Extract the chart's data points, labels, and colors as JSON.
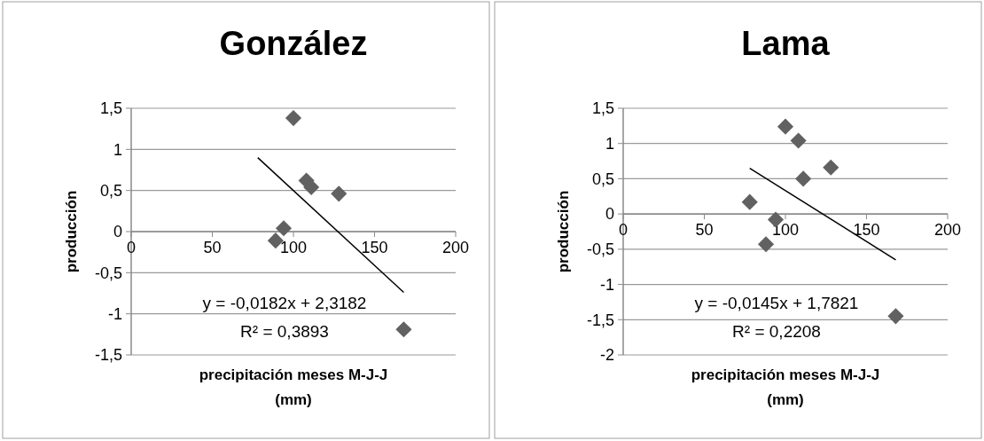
{
  "chart_data": [
    {
      "type": "scatter",
      "title": "González",
      "xlabel": "precipitación meses M-J-J (mm)",
      "ylabel": "producción",
      "xlim": [
        0,
        200
      ],
      "xticks": [
        0,
        50,
        100,
        150,
        200
      ],
      "ylim": [
        -1.5,
        1.5
      ],
      "yticks": [
        {
          "value": -1.5,
          "label": "-1,5"
        },
        {
          "value": -1,
          "label": "-1"
        },
        {
          "value": -0.5,
          "label": "-0,5"
        },
        0,
        {
          "value": 0.5,
          "label": "0,5"
        },
        1,
        {
          "value": 1.5,
          "label": "1,5"
        }
      ],
      "grid": "y",
      "annotations": [
        "y = -0,0182x + 2,3182",
        "R² = 0,3893"
      ],
      "series": [
        {
          "marker": "diamond",
          "color": "#616161",
          "x": [
            100,
            108,
            111,
            128,
            94,
            89,
            168
          ],
          "values": [
            1.38,
            0.62,
            0.54,
            0.46,
            0.04,
            -0.11,
            -1.19
          ]
        },
        {
          "type": "line",
          "color": "#000000",
          "x": [
            78,
            168
          ],
          "values": [
            0.9,
            -0.74
          ]
        }
      ]
    },
    {
      "type": "scatter",
      "title": "Lama",
      "xlabel": "precipitación meses M-J-J (mm)",
      "ylabel": "producción",
      "xlim": [
        0,
        200
      ],
      "xticks": [
        0,
        50,
        100,
        150,
        200
      ],
      "ylim": [
        -2,
        1.5
      ],
      "yticks": [
        -2,
        {
          "value": -1.5,
          "label": "-1,5"
        },
        -1,
        {
          "value": -0.5,
          "label": "-0,5"
        },
        0,
        {
          "value": 0.5,
          "label": "0,5"
        },
        1,
        {
          "value": 1.5,
          "label": "1,5"
        }
      ],
      "grid": "y",
      "annotations": [
        "y = -0,0145x + 1,7821",
        "R² = 0,2208"
      ],
      "series": [
        {
          "marker": "diamond",
          "color": "#616161",
          "x": [
            100,
            108,
            128,
            111,
            78,
            94,
            88,
            168
          ],
          "values": [
            1.24,
            1.04,
            0.66,
            0.5,
            0.17,
            -0.08,
            -0.43,
            -1.45
          ]
        },
        {
          "type": "line",
          "color": "#000000",
          "x": [
            78,
            168
          ],
          "values": [
            0.65,
            -0.65
          ]
        }
      ]
    }
  ]
}
